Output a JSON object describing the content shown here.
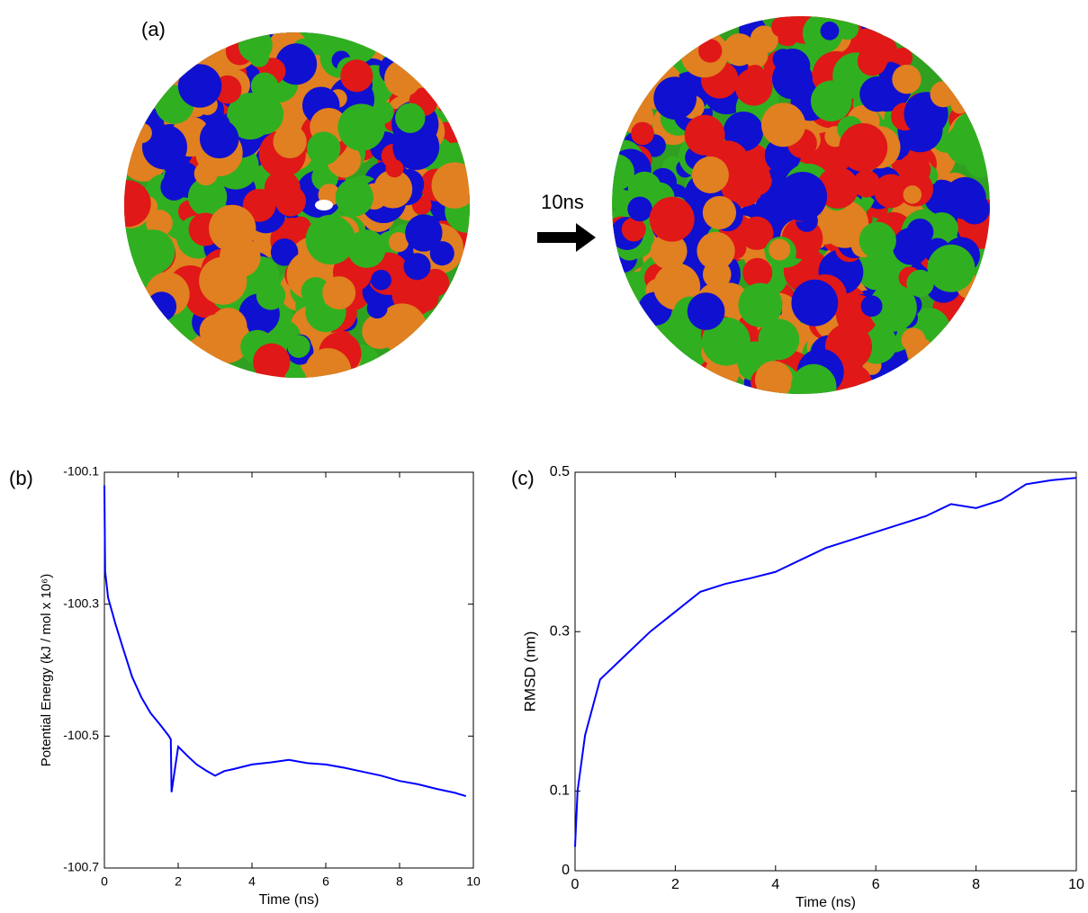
{
  "panel_a": {
    "label": "(a)",
    "arrow_label": "10ns"
  },
  "chart_data": [
    {
      "type": "line",
      "panel": "(b)",
      "xlabel": "Time (ns)",
      "ylabel": "Potential Energy (kJ / mol x 10⁶)",
      "xlim": [
        0,
        10
      ],
      "xticks": [
        0,
        2,
        4,
        6,
        8,
        10
      ],
      "ylim": [
        -100.7,
        -100.1
      ],
      "yticks": [
        -100.1,
        -100.3,
        -100.5,
        -100.7
      ],
      "series": [
        {
          "color": "#0000ff",
          "x": [
            0,
            0.02,
            0.1,
            0.3,
            0.5,
            0.75,
            1,
            1.25,
            1.5,
            1.75,
            1.8,
            1.82,
            2,
            2.25,
            2.5,
            2.75,
            3,
            3.25,
            3.5,
            4,
            4.5,
            5,
            5.5,
            6,
            6.5,
            7,
            7.5,
            8,
            8.5,
            9,
            9.5,
            9.8
          ],
          "values": [
            -100.12,
            -100.25,
            -100.29,
            -100.33,
            -100.366,
            -100.41,
            -100.441,
            -100.465,
            -100.482,
            -100.5,
            -100.505,
            -100.585,
            -100.516,
            -100.53,
            -100.543,
            -100.552,
            -100.56,
            -100.553,
            -100.55,
            -100.543,
            -100.54,
            -100.536,
            -100.541,
            -100.543,
            -100.548,
            -100.554,
            -100.56,
            -100.568,
            -100.573,
            -100.58,
            -100.586,
            -100.591
          ]
        }
      ]
    },
    {
      "type": "line",
      "panel": "(c)",
      "xlabel": "Time (ns)",
      "ylabel": "RMSD (nm)",
      "xlim": [
        0,
        10
      ],
      "xticks": [
        0,
        2,
        4,
        6,
        8,
        10
      ],
      "ylim": [
        0,
        0.5
      ],
      "yticks": [
        0,
        0.1,
        0.3,
        0.5
      ],
      "series": [
        {
          "color": "#0000ff",
          "x": [
            0,
            0.05,
            0.2,
            0.5,
            1,
            1.5,
            2,
            2.5,
            3,
            3.5,
            4,
            4.5,
            5,
            5.5,
            6,
            6.5,
            7,
            7.5,
            8,
            8.5,
            9,
            9.5,
            10
          ],
          "values": [
            0.03,
            0.1,
            0.17,
            0.24,
            0.27,
            0.3,
            0.325,
            0.35,
            0.36,
            0.367,
            0.375,
            0.39,
            0.405,
            0.415,
            0.425,
            0.435,
            0.445,
            0.46,
            0.455,
            0.465,
            0.485,
            0.49,
            0.493
          ]
        }
      ]
    }
  ]
}
